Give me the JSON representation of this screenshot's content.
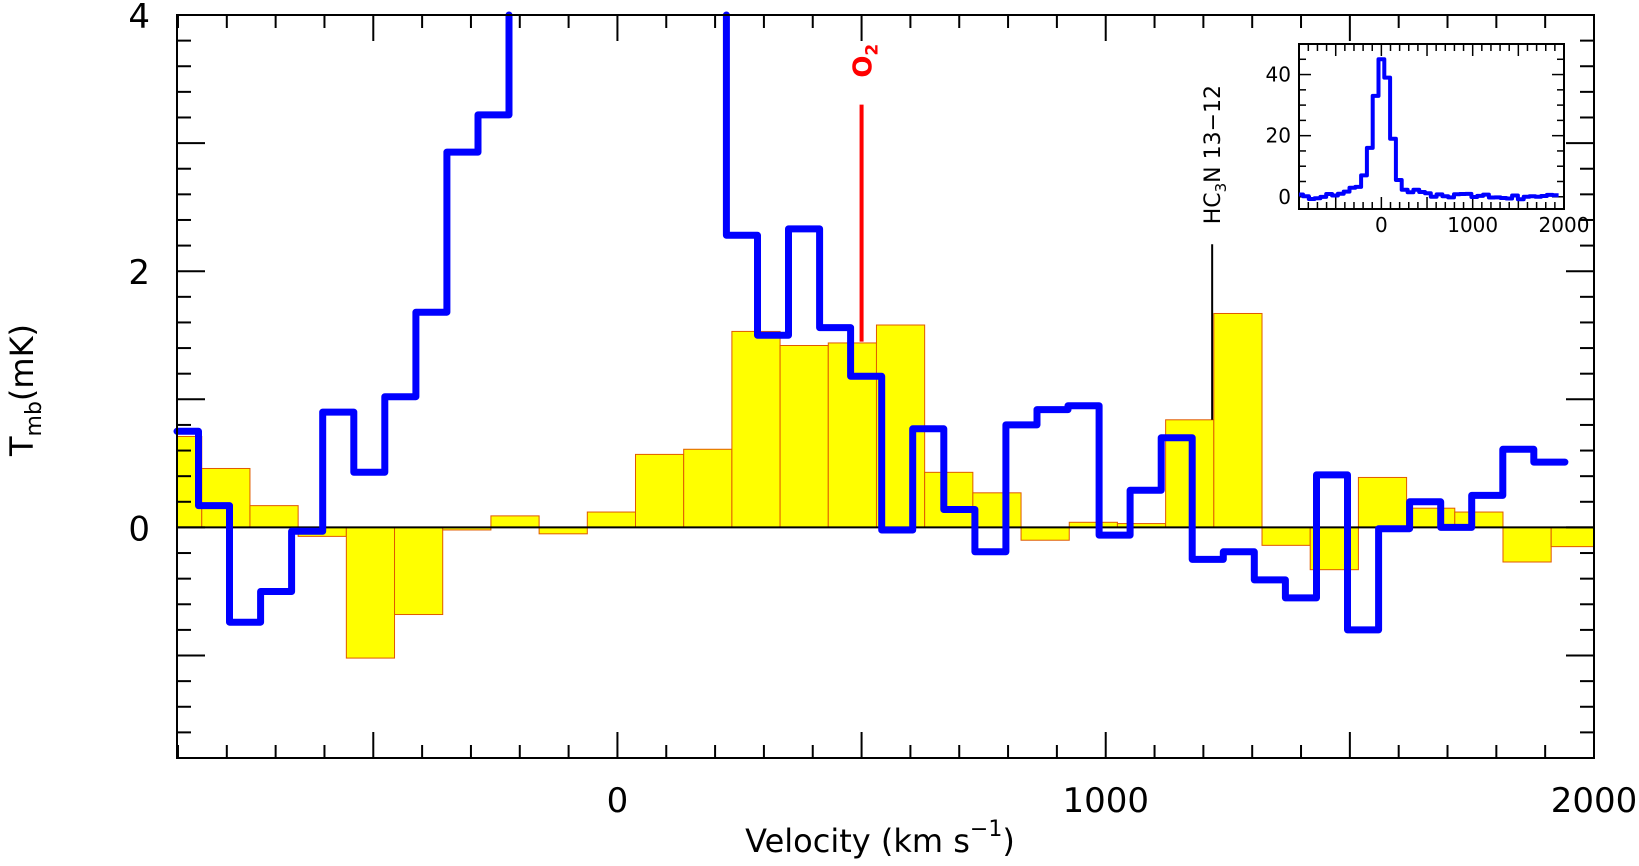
{
  "chart_data": {
    "type": "line",
    "title": "",
    "xlabel": "Velocity (km s",
    "xlabel_sup": "−1",
    "xlabel_close": ")",
    "ylabel": "T",
    "ylabel_sub": "mb",
    "ylabel_unit": "(mK)",
    "xlim": [
      -902,
      2000
    ],
    "ylim": [
      -1.8,
      4
    ],
    "x_ticks": [
      0,
      1000,
      2000
    ],
    "x_tick_labels": [
      "0",
      "1000",
      "2000"
    ],
    "y_ticks": [
      0,
      2,
      4
    ],
    "y_tick_labels": [
      "0",
      "2",
      "4"
    ],
    "grid": false,
    "series": [
      {
        "name": "binned spectrum (histogram)",
        "style": "filled-bars",
        "color": "#ffff00",
        "edge_color": "#e05a00",
        "bin_width": 98.7,
        "first_edge": -950,
        "values": [
          0.71,
          0.46,
          0.17,
          -0.07,
          -1.02,
          -0.68,
          -0.02,
          0.09,
          -0.05,
          0.12,
          0.57,
          0.61,
          1.53,
          1.42,
          1.44,
          1.58,
          0.43,
          0.27,
          -0.1,
          0.04,
          0.03,
          0.84,
          1.67,
          -0.14,
          -0.33,
          0.39,
          0.15,
          0.12,
          -0.27,
          -0.15
        ]
      },
      {
        "name": "full-resolution spectrum",
        "style": "step",
        "color": "#0000ff",
        "bin_width": 63.6,
        "first_edge": -921.6,
        "values": [
          0.75,
          0.17,
          -0.74,
          -0.5,
          -0.03,
          0.9,
          0.43,
          1.02,
          1.68,
          2.93,
          3.22,
          7,
          16,
          33,
          45,
          39,
          19,
          5.5,
          2.28,
          1.5,
          2.33,
          1.56,
          1.18,
          -0.02,
          0.77,
          0.14,
          -0.19,
          0.8,
          0.92,
          0.95,
          -0.06,
          0.29,
          0.7,
          -0.25,
          -0.19,
          -0.41,
          -0.55,
          0.41,
          -0.8,
          -0.01,
          0.2,
          0.0,
          0.25,
          0.61,
          0.51
        ]
      }
    ],
    "annotations": [
      {
        "label": "O",
        "sub": "2",
        "x": 500,
        "y_from": 1.45,
        "y_to": 3.3,
        "color": "#ff0000"
      },
      {
        "label": "HC",
        "sub": "3",
        "rest": "N  13−12",
        "x": 1218,
        "y_from": 0.84,
        "y_to": 2.21,
        "color": "#000000"
      }
    ],
    "inset": {
      "xlim": [
        -902,
        2000
      ],
      "ylim": [
        -4,
        50
      ],
      "x_ticks": [
        0,
        1000,
        2000
      ],
      "x_tick_labels": [
        "0",
        "1000",
        "2000"
      ],
      "y_ticks": [
        0,
        20,
        40
      ],
      "y_tick_labels": [
        "0",
        "20",
        "40"
      ],
      "series": "full-resolution spectrum"
    }
  }
}
